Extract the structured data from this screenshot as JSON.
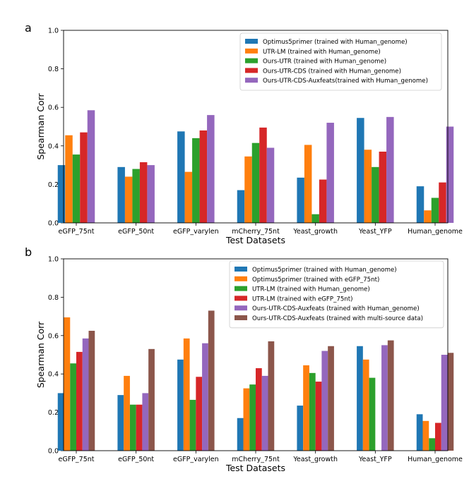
{
  "chart_data": [
    {
      "panel_label": "a",
      "type": "bar",
      "xlabel": "Test Datasets",
      "ylabel": "Spearman Corr",
      "ylim": [
        0,
        1.0
      ],
      "yticks": [
        "0.0",
        "0.2",
        "0.4",
        "0.6",
        "0.8",
        "1.0"
      ],
      "legend_position": "top-right",
      "categories": [
        "eGFP_75nt",
        "eGFP_50nt",
        "eGFP_varylen",
        "mCherry_75nt",
        "Yeast_growth",
        "Yeast_YFP",
        "Human_genome"
      ],
      "series": [
        {
          "name": "Optimus5primer (trained with Human_genome)",
          "color": "#1f77b4",
          "values": [
            0.3,
            0.29,
            0.475,
            0.17,
            0.235,
            0.545,
            0.19
          ]
        },
        {
          "name": "UTR-LM (trained with Human_genome)",
          "color": "#ff7f0e",
          "values": [
            0.455,
            0.24,
            0.265,
            0.345,
            0.405,
            0.38,
            0.065
          ]
        },
        {
          "name": "Ours-UTR (trained with Human_genome)",
          "color": "#2ca02c",
          "values": [
            0.355,
            0.28,
            0.44,
            0.415,
            0.045,
            0.29,
            0.13
          ]
        },
        {
          "name": "Ours-UTR-CDS (trained with Human_genome)",
          "color": "#d62728",
          "values": [
            0.47,
            0.315,
            0.48,
            0.495,
            0.225,
            0.37,
            0.21
          ]
        },
        {
          "name": "Ours-UTR-CDS-Auxfeats(trained with Human_genome)",
          "color": "#9467bd",
          "values": [
            0.585,
            0.3,
            0.56,
            0.39,
            0.52,
            0.55,
            0.5
          ]
        }
      ]
    },
    {
      "panel_label": "b",
      "type": "bar",
      "xlabel": "Test Datasets",
      "ylabel": "Spearman Corr",
      "ylim": [
        0,
        1.0
      ],
      "yticks": [
        "0.0",
        "0.2",
        "0.4",
        "0.6",
        "0.8",
        "1.0"
      ],
      "legend_position": "top-right",
      "categories": [
        "eGFP_75nt",
        "eGFP_50nt",
        "eGFP_varylen",
        "mCherry_75nt",
        "Yeast_growth",
        "Yeast_YFP",
        "Human_genome"
      ],
      "series": [
        {
          "name": "Optimus5primer (trained with Human_genome)",
          "color": "#1f77b4",
          "values": [
            0.3,
            0.29,
            0.475,
            0.17,
            0.235,
            0.545,
            0.19
          ]
        },
        {
          "name": "Optimus5primer (trained with eGFP_75nt)",
          "color": "#ff7f0e",
          "values": [
            0.695,
            0.39,
            0.585,
            0.325,
            0.445,
            0.475,
            0.155
          ]
        },
        {
          "name": "UTR-LM (trained with Human_genome)",
          "color": "#2ca02c",
          "values": [
            0.455,
            0.24,
            0.265,
            0.345,
            0.405,
            0.38,
            0.065
          ]
        },
        {
          "name": "UTR-LM (trained with eGFP_75nt)",
          "color": "#d62728",
          "values": [
            0.515,
            0.24,
            0.385,
            0.43,
            0.36,
            0.0,
            0.145
          ]
        },
        {
          "name": "Ours-UTR-CDS-Auxfeats (trained with Human_genome)",
          "color": "#9467bd",
          "values": [
            0.585,
            0.3,
            0.56,
            0.39,
            0.52,
            0.55,
            0.5
          ]
        },
        {
          "name": "Ours-UTR-CDS-Auxfeats (trained with multi-source data)",
          "color": "#8c564b",
          "values": [
            0.625,
            0.53,
            0.73,
            0.57,
            0.545,
            0.575,
            0.51
          ]
        }
      ]
    }
  ]
}
